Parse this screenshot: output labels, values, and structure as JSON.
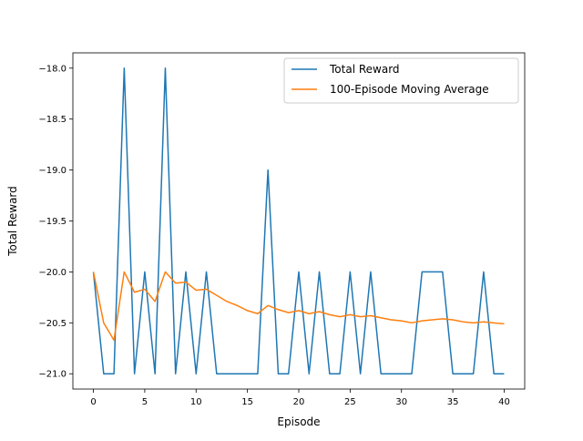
{
  "chart_data": {
    "type": "line",
    "title": "",
    "xlabel": "Episode",
    "ylabel": "Total Reward",
    "xlim": [
      -2,
      42
    ],
    "ylim": [
      -21.15,
      -17.85
    ],
    "x_ticks": [
      0,
      5,
      10,
      15,
      20,
      25,
      30,
      35,
      40
    ],
    "x_tick_labels": [
      "0",
      "5",
      "10",
      "15",
      "20",
      "25",
      "30",
      "35",
      "40"
    ],
    "y_ticks": [
      -21.0,
      -20.5,
      -20.0,
      -19.5,
      -19.0,
      -18.5,
      -18.0
    ],
    "y_tick_labels": [
      "−21.0",
      "−20.5",
      "−20.0",
      "−19.5",
      "−19.0",
      "−18.5",
      "−18.0"
    ],
    "grid": false,
    "legend_position": "top-right",
    "x": [
      0,
      1,
      2,
      3,
      4,
      5,
      6,
      7,
      8,
      9,
      10,
      11,
      12,
      13,
      14,
      15,
      16,
      17,
      18,
      19,
      20,
      21,
      22,
      23,
      24,
      25,
      26,
      27,
      28,
      29,
      30,
      31,
      32,
      33,
      34,
      35,
      36,
      37,
      38,
      39,
      40
    ],
    "series": [
      {
        "name": "Total Reward",
        "color": "#1f77b4",
        "values": [
          -20,
          -21,
          -21,
          -18,
          -21,
          -20,
          -21,
          -18,
          -21,
          -20,
          -21,
          -20,
          -21,
          -21,
          -21,
          -21,
          -21,
          -19,
          -21,
          -21,
          -20,
          -21,
          -20,
          -21,
          -21,
          -20,
          -21,
          -20,
          -21,
          -21,
          -21,
          -21,
          -20,
          -20,
          -20,
          -21,
          -21,
          -21,
          -20,
          -21,
          -21
        ]
      },
      {
        "name": "100-Episode Moving Average",
        "color": "#ff7f0e",
        "values": [
          -20.0,
          -20.5,
          -20.67,
          -20.0,
          -20.2,
          -20.17,
          -20.29,
          -20.0,
          -20.11,
          -20.1,
          -20.18,
          -20.17,
          -20.23,
          -20.29,
          -20.33,
          -20.38,
          -20.41,
          -20.33,
          -20.37,
          -20.4,
          -20.38,
          -20.41,
          -20.39,
          -20.42,
          -20.44,
          -20.42,
          -20.44,
          -20.43,
          -20.45,
          -20.47,
          -20.48,
          -20.5,
          -20.48,
          -20.47,
          -20.46,
          -20.47,
          -20.49,
          -20.5,
          -20.49,
          -20.5,
          -20.51
        ]
      }
    ]
  }
}
